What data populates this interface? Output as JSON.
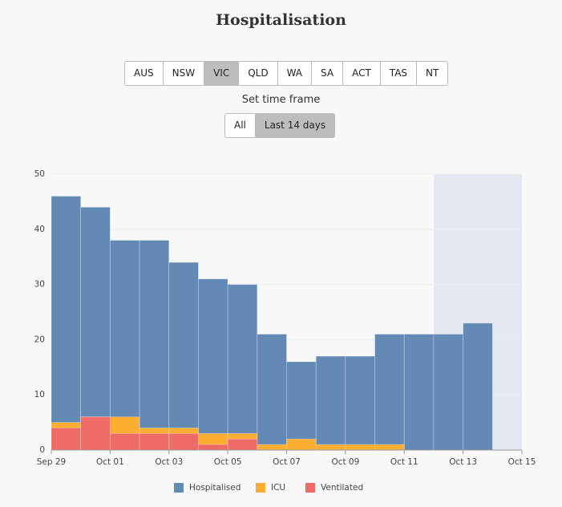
{
  "title": "Hospitalisation",
  "regions": [
    "AUS",
    "NSW",
    "VIC",
    "QLD",
    "WA",
    "SA",
    "ACT",
    "TAS",
    "NT"
  ],
  "selected_region": 2,
  "time_frame": {
    "label": "Set time frame",
    "options": [
      "All",
      "Last 14 days"
    ],
    "selected": 1
  },
  "chart_data": {
    "type": "bar",
    "xticks": [
      "Sep 29",
      "Oct 01",
      "Oct 03",
      "Oct 05",
      "Oct 07",
      "Oct 09",
      "Oct 11",
      "Oct 13",
      "Oct 15"
    ],
    "series": [
      {
        "name": "Hospitalised",
        "color": "#6389b5",
        "values": [
          46,
          44,
          38,
          38,
          34,
          31,
          30,
          21,
          16,
          17,
          17,
          21,
          21,
          21,
          23
        ]
      },
      {
        "name": "ICU",
        "color": "#fbae32",
        "values": [
          5,
          6,
          6,
          4,
          4,
          3,
          3,
          1,
          2,
          1,
          1,
          1,
          0,
          0,
          0
        ]
      },
      {
        "name": "Ventilated",
        "color": "#ef6b67",
        "values": [
          4,
          6,
          3,
          3,
          3,
          1,
          2,
          0,
          0,
          0,
          0,
          0,
          0,
          0,
          0
        ]
      }
    ],
    "ylim": [
      0,
      50
    ],
    "yticks": [
      0,
      10,
      20,
      30,
      40,
      50
    ],
    "grid": true
  }
}
